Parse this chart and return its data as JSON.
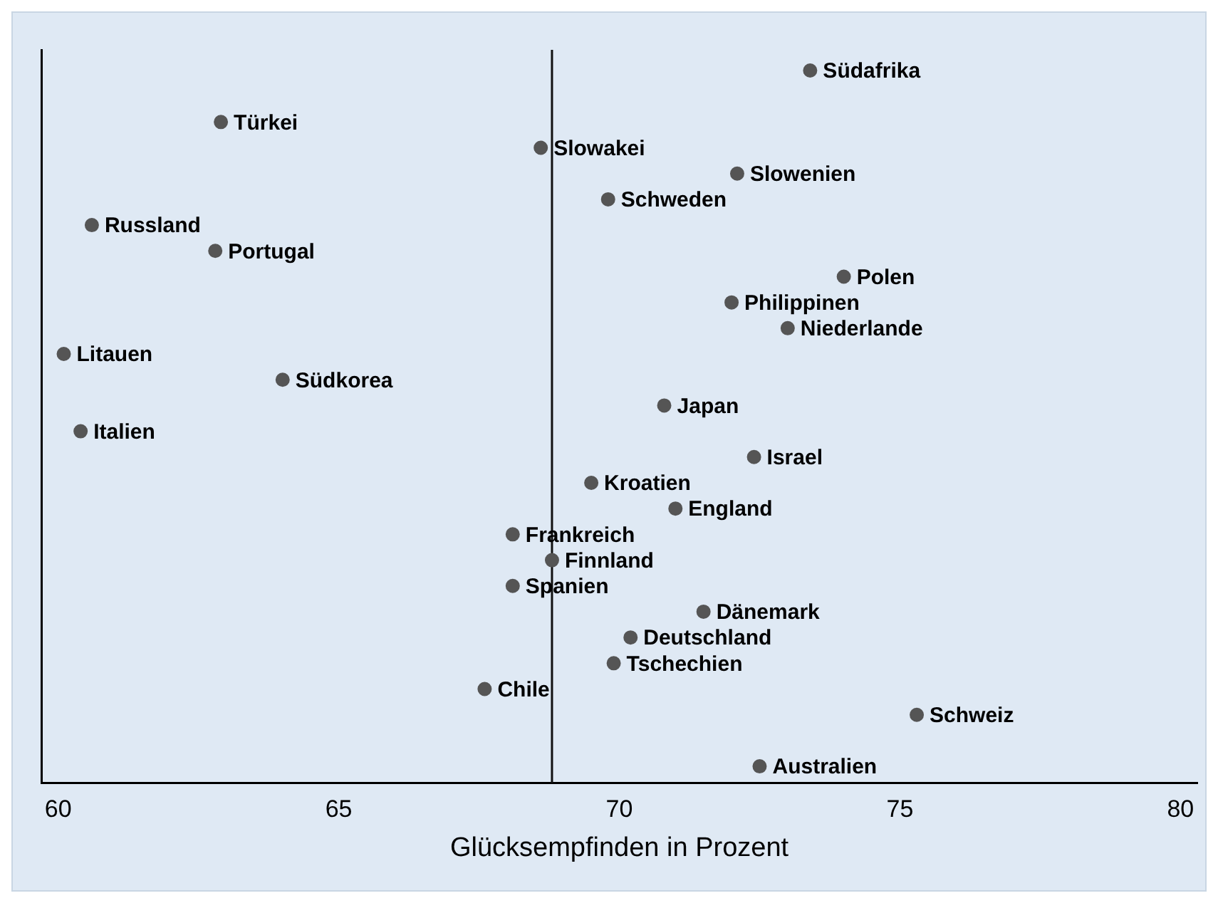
{
  "chart_data": {
    "type": "scatter",
    "orientation": "horizontal",
    "xlabel": "Glücksempfinden in Prozent",
    "categories": [
      "Südafrika",
      null,
      "Türkei",
      "Slowakei",
      "Slowenien",
      "Schweden",
      "Russland",
      "Portugal",
      "Polen",
      "Philippinen",
      "Niederlande",
      "Litauen",
      "Südkorea",
      "Japan",
      "Italien",
      "Israel",
      "Kroatien",
      "England",
      "Frankreich",
      "Finnland",
      "Spanien",
      "Dänemark",
      "Deutschland",
      "Tschechien",
      "Chile",
      "Schweiz",
      null,
      "Australien"
    ],
    "values": [
      73.4,
      null,
      62.9,
      68.6,
      72.1,
      69.8,
      60.6,
      62.8,
      74.0,
      72.0,
      73.0,
      60.1,
      64.0,
      70.8,
      60.4,
      72.4,
      69.5,
      71.0,
      68.1,
      68.8,
      68.1,
      71.5,
      70.2,
      69.9,
      67.6,
      75.3,
      null,
      72.5
    ],
    "color": "#555555",
    "marker": "circle",
    "xlim": [
      59.7,
      80.3
    ],
    "xticks": [
      60,
      65,
      70,
      75,
      80
    ],
    "tick_labels": "x",
    "ref_lines": [
      {
        "axis": "x",
        "value": 68.8,
        "color": "#111111"
      }
    ]
  }
}
